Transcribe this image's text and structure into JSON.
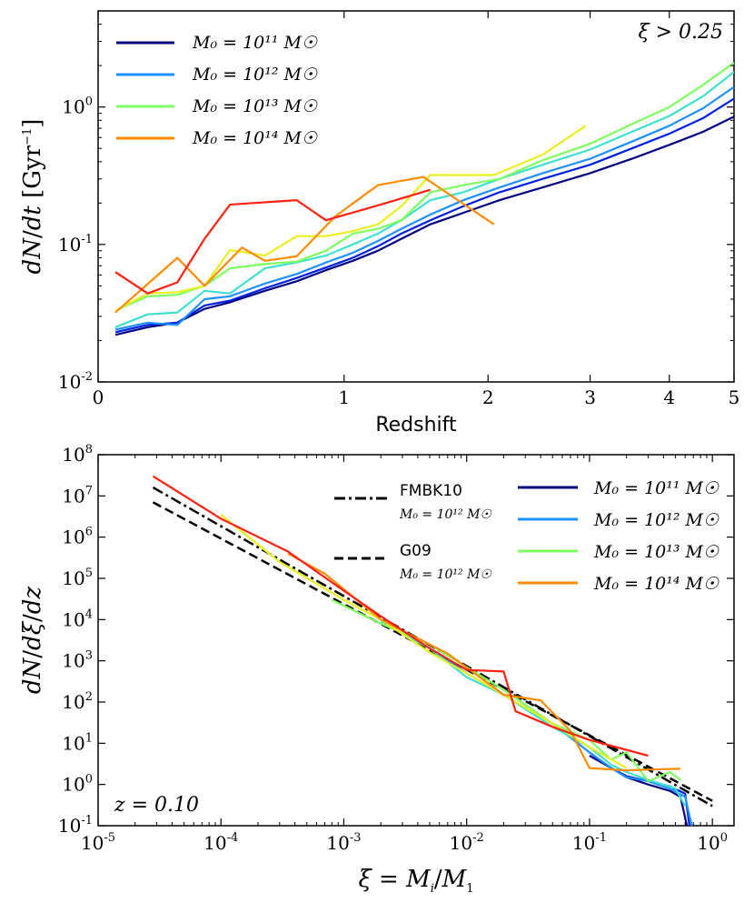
{
  "chart_data": [
    {
      "type": "line",
      "panel": "top",
      "xlabel": "Redshift",
      "ylabel": "dN/dt [Gyr^-1]",
      "xscale": "log(1+z)",
      "yscale": "log",
      "xlim": [
        0,
        5
      ],
      "ylim": [
        0.01,
        5
      ],
      "annotation": "ξ > 0.25",
      "x_ticks": [
        {
          "label": "0",
          "value": 0
        },
        {
          "label": "1",
          "value": 1
        },
        {
          "label": "2",
          "value": 2
        },
        {
          "label": "3",
          "value": 3
        },
        {
          "label": "4",
          "value": 4
        },
        {
          "label": "5",
          "value": 5
        }
      ],
      "y_ticks": [
        {
          "base": "10",
          "exp": "-2",
          "value": 0.01
        },
        {
          "base": "10",
          "exp": "-1",
          "value": 0.1
        },
        {
          "base": "10",
          "exp": "0",
          "value": 1
        }
      ],
      "legend": [
        {
          "label": "M₀ = 10¹¹ M☉",
          "color": "#000080"
        },
        {
          "label": "M₀ = 10¹² M☉",
          "color": "#1e90ff"
        },
        {
          "label": "M₀ = 10¹³ M☉",
          "color": "#7fff5f"
        },
        {
          "label": "M₀ = 10¹⁴ M☉",
          "color": "#ff8c00"
        }
      ],
      "series": [
        {
          "name": "1e11",
          "color": "#000080",
          "x": [
            0.05,
            0.15,
            0.25,
            0.35,
            0.45,
            0.6,
            0.75,
            0.9,
            1.05,
            1.2,
            1.35,
            1.55,
            1.8,
            2.1,
            2.5,
            3.0,
            3.5,
            4.0,
            4.5,
            5.0
          ],
          "y": [
            0.022,
            0.025,
            0.027,
            0.034,
            0.038,
            0.046,
            0.054,
            0.065,
            0.076,
            0.09,
            0.11,
            0.14,
            0.17,
            0.21,
            0.26,
            0.33,
            0.42,
            0.53,
            0.66,
            0.85
          ]
        },
        {
          "name": "mid1",
          "color": "#0020e0",
          "x": [
            0.05,
            0.15,
            0.25,
            0.35,
            0.45,
            0.6,
            0.75,
            0.9,
            1.05,
            1.2,
            1.35,
            1.55,
            1.8,
            2.1,
            2.5,
            3.0,
            3.5,
            4.0,
            4.5,
            5.0
          ],
          "y": [
            0.023,
            0.026,
            0.027,
            0.036,
            0.039,
            0.048,
            0.057,
            0.068,
            0.08,
            0.097,
            0.12,
            0.15,
            0.19,
            0.24,
            0.3,
            0.38,
            0.5,
            0.64,
            0.83,
            1.15
          ]
        },
        {
          "name": "1e12",
          "color": "#1e90ff",
          "x": [
            0.05,
            0.15,
            0.25,
            0.35,
            0.45,
            0.6,
            0.75,
            0.9,
            1.05,
            1.2,
            1.35,
            1.55,
            1.8,
            2.1,
            2.5,
            3.0,
            3.5,
            4.0,
            4.5,
            5.0
          ],
          "y": [
            0.024,
            0.027,
            0.026,
            0.04,
            0.042,
            0.052,
            0.061,
            0.074,
            0.087,
            0.106,
            0.13,
            0.165,
            0.21,
            0.26,
            0.33,
            0.42,
            0.56,
            0.73,
            0.98,
            1.4
          ]
        },
        {
          "name": "mid2",
          "color": "#40e0d0",
          "x": [
            0.05,
            0.15,
            0.25,
            0.35,
            0.45,
            0.6,
            0.75,
            0.9,
            1.05,
            1.2,
            1.35,
            1.55,
            1.8,
            2.1,
            2.5,
            3.0,
            3.5,
            4.0,
            4.5,
            5.0
          ],
          "y": [
            0.025,
            0.031,
            0.032,
            0.046,
            0.044,
            0.067,
            0.074,
            0.083,
            0.1,
            0.12,
            0.15,
            0.21,
            0.24,
            0.3,
            0.38,
            0.49,
            0.66,
            0.86,
            1.2,
            1.8
          ]
        },
        {
          "name": "1e13",
          "color": "#7fff5f",
          "x": [
            0.05,
            0.15,
            0.25,
            0.35,
            0.45,
            0.6,
            0.75,
            0.9,
            1.05,
            1.2,
            1.35,
            1.55,
            1.8,
            2.1,
            2.5,
            3.0,
            3.5,
            4.0,
            4.5,
            5.0
          ],
          "y": [
            0.033,
            0.042,
            0.043,
            0.05,
            0.067,
            0.072,
            0.075,
            0.09,
            0.12,
            0.13,
            0.15,
            0.24,
            0.27,
            0.3,
            0.41,
            0.54,
            0.75,
            1.0,
            1.45,
            2.1
          ]
        },
        {
          "name": "mid3",
          "color": "#e8f020",
          "x": [
            0.05,
            0.15,
            0.25,
            0.35,
            0.45,
            0.6,
            0.75,
            0.9,
            1.05,
            1.2,
            1.35,
            1.55,
            1.8,
            2.05,
            2.5,
            2.95
          ],
          "y": [
            0.033,
            0.044,
            0.045,
            0.05,
            0.091,
            0.083,
            0.115,
            0.115,
            0.125,
            0.14,
            0.19,
            0.32,
            0.32,
            0.32,
            0.45,
            0.73
          ]
        },
        {
          "name": "1e14",
          "color": "#ff8c00",
          "x": [
            0.05,
            0.25,
            0.35,
            0.5,
            0.6,
            0.75,
            0.95,
            1.2,
            1.5,
            2.05
          ],
          "y": [
            0.032,
            0.08,
            0.05,
            0.095,
            0.076,
            0.082,
            0.16,
            0.27,
            0.31,
            0.14
          ]
        },
        {
          "name": "mid4",
          "color": "#ff2010",
          "x": [
            0.05,
            0.15,
            0.25,
            0.35,
            0.45,
            0.75,
            0.9,
            1.25,
            1.55
          ],
          "y": [
            0.063,
            0.044,
            0.053,
            0.11,
            0.195,
            0.21,
            0.15,
            0.2,
            0.25
          ]
        }
      ]
    },
    {
      "type": "line",
      "panel": "bottom",
      "xlabel": "ξ = Mᵢ/M₁",
      "ylabel": "dN/dξ/dz",
      "xscale": "log",
      "yscale": "log",
      "xlim": [
        1e-05,
        1.5
      ],
      "ylim": [
        0.1,
        100000000
      ],
      "annotation": "z = 0.10",
      "x_ticks": [
        {
          "base": "10",
          "exp": "-5",
          "value": 1e-05
        },
        {
          "base": "10",
          "exp": "-4",
          "value": 0.0001
        },
        {
          "base": "10",
          "exp": "-3",
          "value": 0.001
        },
        {
          "base": "10",
          "exp": "-2",
          "value": 0.01
        },
        {
          "base": "10",
          "exp": "-1",
          "value": 0.1
        },
        {
          "base": "10",
          "exp": "0",
          "value": 1
        }
      ],
      "y_ticks": [
        {
          "base": "10",
          "exp": "-1",
          "value": 0.1
        },
        {
          "base": "10",
          "exp": "0",
          "value": 1
        },
        {
          "base": "10",
          "exp": "1",
          "value": 10
        },
        {
          "base": "10",
          "exp": "2",
          "value": 100
        },
        {
          "base": "10",
          "exp": "3",
          "value": 1000
        },
        {
          "base": "10",
          "exp": "4",
          "value": 10000
        },
        {
          "base": "10",
          "exp": "5",
          "value": 100000
        },
        {
          "base": "10",
          "exp": "6",
          "value": 1000000
        },
        {
          "base": "10",
          "exp": "7",
          "value": 10000000
        },
        {
          "base": "10",
          "exp": "8",
          "value": 100000000
        }
      ],
      "legend_models": [
        {
          "label": "FMBK10",
          "sublabel": "M₀ = 10¹² M☉",
          "style": "dashdot"
        },
        {
          "label": "G09",
          "sublabel": "M₀ = 10¹² M☉",
          "style": "dashed"
        }
      ],
      "legend": [
        {
          "label": "M₀ = 10¹¹ M☉",
          "color": "#000080"
        },
        {
          "label": "M₀ = 10¹² M☉",
          "color": "#1e90ff"
        },
        {
          "label": "M₀ = 10¹³ M☉",
          "color": "#7fff5f"
        },
        {
          "label": "M₀ = 10¹⁴ M☉",
          "color": "#ff8c00"
        }
      ],
      "model_lines": [
        {
          "name": "FMBK10",
          "style": "dashdot",
          "x": [
            2.8e-05,
            1.0
          ],
          "y": [
            16000000,
            0.3
          ]
        },
        {
          "name": "G09",
          "style": "dashed",
          "x": [
            2.8e-05,
            1.0
          ],
          "y": [
            7000000,
            0.4
          ]
        }
      ],
      "series": [
        {
          "name": "1e11",
          "color": "#000080",
          "x": [
            0.1,
            0.15,
            0.2,
            0.3,
            0.45,
            0.55,
            0.62
          ],
          "y": [
            5,
            2.5,
            1.5,
            1.0,
            0.7,
            0.5,
            0.1
          ]
        },
        {
          "name": "mid1",
          "color": "#0020e0",
          "x": [
            0.1,
            0.15,
            0.2,
            0.3,
            0.45,
            0.6,
            0.65
          ],
          "y": [
            6,
            2.5,
            1.6,
            1.2,
            0.9,
            0.6,
            0.1
          ]
        },
        {
          "name": "1e12",
          "color": "#1e90ff",
          "x": [
            0.005,
            0.01,
            0.02,
            0.05,
            0.1,
            0.15,
            0.2,
            0.3,
            0.45,
            0.6,
            0.68
          ],
          "y": [
            2000,
            500,
            150,
            30,
            6,
            2.5,
            1.5,
            1.2,
            0.8,
            0.5,
            0.1
          ]
        },
        {
          "name": "mid2",
          "color": "#40e0d0",
          "x": [
            0.002,
            0.005,
            0.01,
            0.02,
            0.05,
            0.1,
            0.15,
            0.2,
            0.3,
            0.5,
            0.6
          ],
          "y": [
            9000,
            2000,
            400,
            150,
            25,
            8,
            3,
            2,
            1.3,
            0.8,
            0.3
          ]
        },
        {
          "name": "1e13",
          "color": "#7fff5f",
          "x": [
            0.0008,
            0.002,
            0.005,
            0.01,
            0.02,
            0.05,
            0.1,
            0.15,
            0.2,
            0.3,
            0.45,
            0.55
          ],
          "y": [
            30000,
            8000,
            2500,
            700,
            200,
            30,
            12,
            4,
            6,
            1.2,
            2,
            1.3
          ]
        },
        {
          "name": "mid3",
          "color": "#e8f020",
          "x": [
            0.0001,
            0.0003,
            0.001,
            0.002,
            0.005,
            0.01,
            0.02,
            0.05,
            0.1,
            0.2
          ],
          "y": [
            3500000,
            250000,
            30000,
            10000,
            1600,
            500,
            150,
            30,
            8,
            2.5
          ]
        },
        {
          "name": "1e14",
          "color": "#ff8c00",
          "x": [
            0.00035,
            0.0007,
            0.002,
            0.007,
            0.02,
            0.04,
            0.07,
            0.1,
            0.2,
            0.3,
            0.55
          ],
          "y": [
            400000,
            130000,
            10000,
            1500,
            150,
            110,
            20,
            2.5,
            2.2,
            2.3,
            2.4
          ]
        },
        {
          "name": "mid4",
          "color": "#ff2010",
          "x": [
            2.8e-05,
            0.0001,
            0.00035,
            0.001,
            0.002,
            0.005,
            0.01,
            0.02,
            0.025,
            0.05,
            0.1,
            0.3
          ],
          "y": [
            30000000,
            2800000,
            450000,
            50000,
            12000,
            2000,
            600,
            550,
            60,
            25,
            12,
            5
          ]
        }
      ]
    }
  ]
}
